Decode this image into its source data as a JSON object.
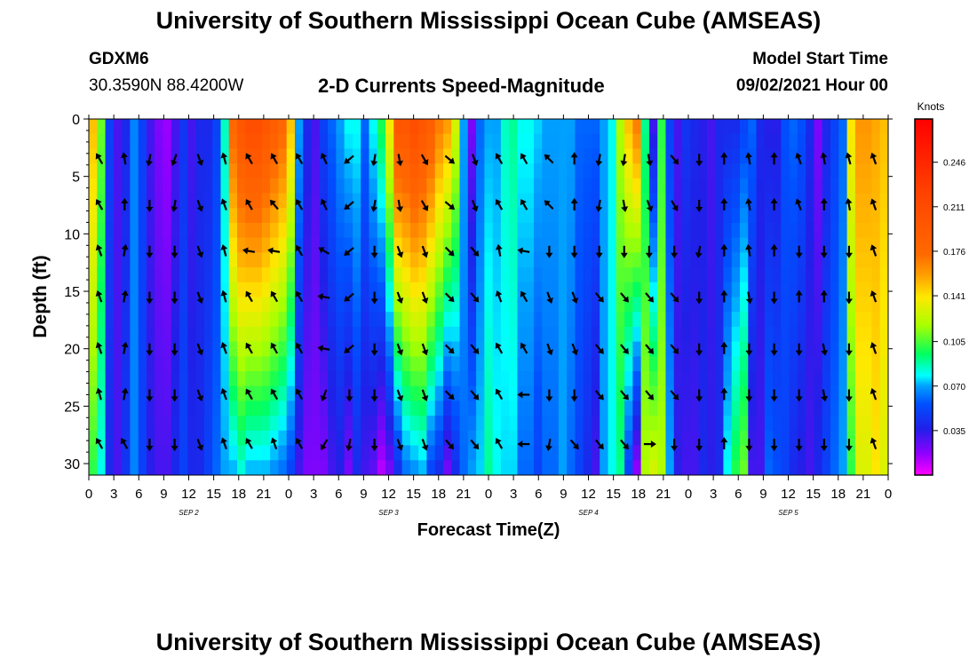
{
  "header": {
    "title": "University of Southern Mississippi Ocean Cube (AMSEAS)",
    "station_id": "GDXM6",
    "location": "30.3590N  88.4200W",
    "subtitle": "2-D Currents Speed-Magnitude",
    "model_start_label": "Model Start Time",
    "model_start_value": "09/02/2021 Hour 00"
  },
  "footer": {
    "title": "University of Southern Mississippi Ocean Cube (AMSEAS)"
  },
  "chart_data": {
    "type": "heatmap",
    "title": "2-D Currents Speed-Magnitude",
    "xlabel": "Forecast Time(Z)",
    "ylabel": "Depth (ft)",
    "xlim": [
      0,
      96
    ],
    "ylim": [
      31,
      0
    ],
    "x_ticks": [
      "0",
      "3",
      "6",
      "9",
      "12",
      "15",
      "18",
      "21",
      "0",
      "3",
      "6",
      "9",
      "12",
      "15",
      "18",
      "21",
      "0",
      "3",
      "6",
      "9",
      "12",
      "15",
      "18",
      "21",
      "0",
      "3",
      "6",
      "9",
      "12",
      "15",
      "18",
      "21",
      "0"
    ],
    "y_ticks": [
      "0",
      "5",
      "10",
      "15",
      "20",
      "25",
      "30"
    ],
    "day_labels": [
      "SEP 2",
      "SEP 3",
      "SEP 4",
      "SEP 5"
    ],
    "colorbar": {
      "units": "Knots",
      "ticks": [
        "0.246",
        "0.211",
        "0.176",
        "0.141",
        "0.105",
        "0.070",
        "0.035"
      ],
      "range": [
        0,
        0.28
      ]
    },
    "speed_profile": {
      "x_hours": [
        0,
        1,
        2,
        3,
        4,
        5,
        6,
        7,
        8,
        9,
        10,
        11,
        12,
        13,
        14,
        15,
        16,
        17,
        18,
        19,
        20,
        21,
        22,
        23,
        24,
        25,
        26,
        27,
        28,
        29,
        30,
        31,
        32,
        33,
        34,
        35,
        36,
        37,
        38,
        39,
        40,
        41,
        42,
        43,
        44,
        45,
        46,
        47,
        48,
        49,
        50,
        51,
        52,
        53,
        54,
        55,
        56,
        57,
        58,
        59,
        60,
        61,
        62,
        63,
        64,
        65,
        66,
        67,
        68,
        69,
        70,
        71,
        72,
        73,
        74,
        75,
        76,
        77,
        78,
        79,
        80,
        81,
        82,
        83,
        84,
        85,
        86,
        87,
        88,
        89,
        90,
        91,
        92,
        93,
        94,
        95,
        96
      ],
      "surface": [
        0.15,
        0.11,
        0.05,
        0.03,
        0.04,
        0.065,
        0.05,
        0.03,
        0.02,
        0.015,
        0.03,
        0.045,
        0.03,
        0.04,
        0.04,
        0.05,
        0.085,
        0.18,
        0.2,
        0.21,
        0.21,
        0.2,
        0.19,
        0.18,
        0.15,
        0.07,
        0.04,
        0.03,
        0.05,
        0.06,
        0.07,
        0.08,
        0.08,
        0.06,
        0.08,
        0.1,
        0.14,
        0.2,
        0.2,
        0.21,
        0.2,
        0.19,
        0.17,
        0.16,
        0.13,
        0.07,
        0.02,
        0.06,
        0.07,
        0.07,
        0.085,
        0.09,
        0.08,
        0.08,
        0.075,
        0.07,
        0.07,
        0.07,
        0.07,
        0.06,
        0.06,
        0.06,
        0.07,
        0.08,
        0.12,
        0.15,
        0.17,
        0.09,
        0.03,
        0.1,
        0.05,
        0.03,
        0.045,
        0.04,
        0.035,
        0.03,
        0.04,
        0.04,
        0.04,
        0.05,
        0.06,
        0.04,
        0.035,
        0.035,
        0.055,
        0.06,
        0.055,
        0.04,
        0.02,
        0.04,
        0.05,
        0.06,
        0.14,
        0.16,
        0.16,
        0.155,
        0.15
      ],
      "bottom": [
        0.1,
        0.08,
        0.04,
        0.03,
        0.045,
        0.065,
        0.05,
        0.035,
        0.03,
        0.03,
        0.04,
        0.05,
        0.04,
        0.04,
        0.05,
        0.06,
        0.07,
        0.07,
        0.08,
        0.07,
        0.07,
        0.07,
        0.065,
        0.06,
        0.05,
        0.03,
        0.02,
        0.02,
        0.02,
        0.03,
        0.035,
        0.02,
        0.04,
        0.03,
        0.025,
        0.01,
        0.02,
        0.04,
        0.06,
        0.065,
        0.07,
        0.05,
        0.04,
        0.02,
        0.04,
        0.06,
        0.07,
        0.075,
        0.09,
        0.08,
        0.075,
        0.075,
        0.06,
        0.06,
        0.05,
        0.06,
        0.06,
        0.07,
        0.06,
        0.05,
        0.04,
        0.03,
        0.07,
        0.08,
        0.09,
        0.05,
        0.015,
        0.12,
        0.13,
        0.12,
        0.07,
        0.035,
        0.03,
        0.03,
        0.04,
        0.035,
        0.04,
        0.08,
        0.1,
        0.11,
        0.03,
        0.03,
        0.06,
        0.055,
        0.05,
        0.04,
        0.035,
        0.03,
        0.04,
        0.05,
        0.06,
        0.07,
        0.1,
        0.13,
        0.13,
        0.14,
        0.13
      ]
    },
    "vector_rows_depth_ft": [
      3.5,
      7.5,
      11.5,
      15.5,
      20,
      24,
      28.3
    ],
    "vector_columns_hours": [
      0,
      3,
      6,
      9,
      12,
      15,
      18,
      21,
      24,
      27,
      30,
      33,
      36,
      39,
      42,
      45,
      48,
      51,
      54,
      57,
      60,
      63,
      66,
      69,
      72,
      75,
      78,
      81,
      84,
      87,
      90,
      93
    ],
    "vector_direction_deg_by_column": [
      60,
      80,
      280,
      290,
      250,
      75,
      60,
      60,
      60,
      65,
      320,
      280,
      260,
      240,
      220,
      250,
      60,
      60,
      45,
      300,
      280,
      280,
      260,
      230,
      270,
      90,
      80,
      90,
      70,
      90,
      80,
      70
    ],
    "vector_direction_deg_by_row": [
      [
        60,
        80,
        280,
        290,
        250,
        75,
        60,
        60,
        60,
        65,
        320,
        280,
        260,
        240,
        220,
        250,
        60,
        60,
        45,
        90,
        280,
        280,
        260,
        230,
        270,
        90,
        80,
        90,
        70,
        80,
        75,
        70
      ],
      [
        60,
        90,
        270,
        280,
        250,
        70,
        60,
        50,
        60,
        65,
        320,
        280,
        260,
        240,
        220,
        250,
        60,
        60,
        45,
        90,
        280,
        260,
        250,
        240,
        270,
        90,
        80,
        90,
        70,
        90,
        80,
        70
      ],
      [
        70,
        100,
        270,
        270,
        250,
        75,
        10,
        10,
        60,
        30,
        320,
        270,
        250,
        250,
        225,
        230,
        80,
        10,
        270,
        270,
        270,
        270,
        270,
        270,
        280,
        90,
        80,
        90,
        270,
        270,
        270,
        70
      ],
      [
        70,
        100,
        270,
        270,
        250,
        75,
        60,
        60,
        60,
        10,
        320,
        270,
        250,
        250,
        225,
        230,
        70,
        60,
        250,
        250,
        230,
        230,
        230,
        230,
        270,
        90,
        260,
        270,
        90,
        90,
        270,
        70
      ],
      [
        70,
        100,
        270,
        270,
        250,
        70,
        60,
        60,
        60,
        10,
        320,
        270,
        250,
        250,
        225,
        230,
        60,
        60,
        250,
        250,
        230,
        230,
        230,
        230,
        270,
        90,
        270,
        270,
        270,
        260,
        270,
        70
      ],
      [
        75,
        100,
        270,
        270,
        250,
        70,
        60,
        60,
        60,
        290,
        270,
        270,
        250,
        250,
        225,
        230,
        60,
        0,
        270,
        270,
        230,
        230,
        230,
        230,
        270,
        90,
        270,
        270,
        270,
        260,
        270,
        70
      ],
      [
        60,
        60,
        270,
        270,
        250,
        70,
        60,
        70,
        60,
        300,
        280,
        270,
        250,
        250,
        230,
        230,
        60,
        0,
        280,
        230,
        230,
        230,
        180,
        270,
        270,
        90,
        270,
        270,
        270,
        270,
        270,
        70
      ]
    ]
  }
}
